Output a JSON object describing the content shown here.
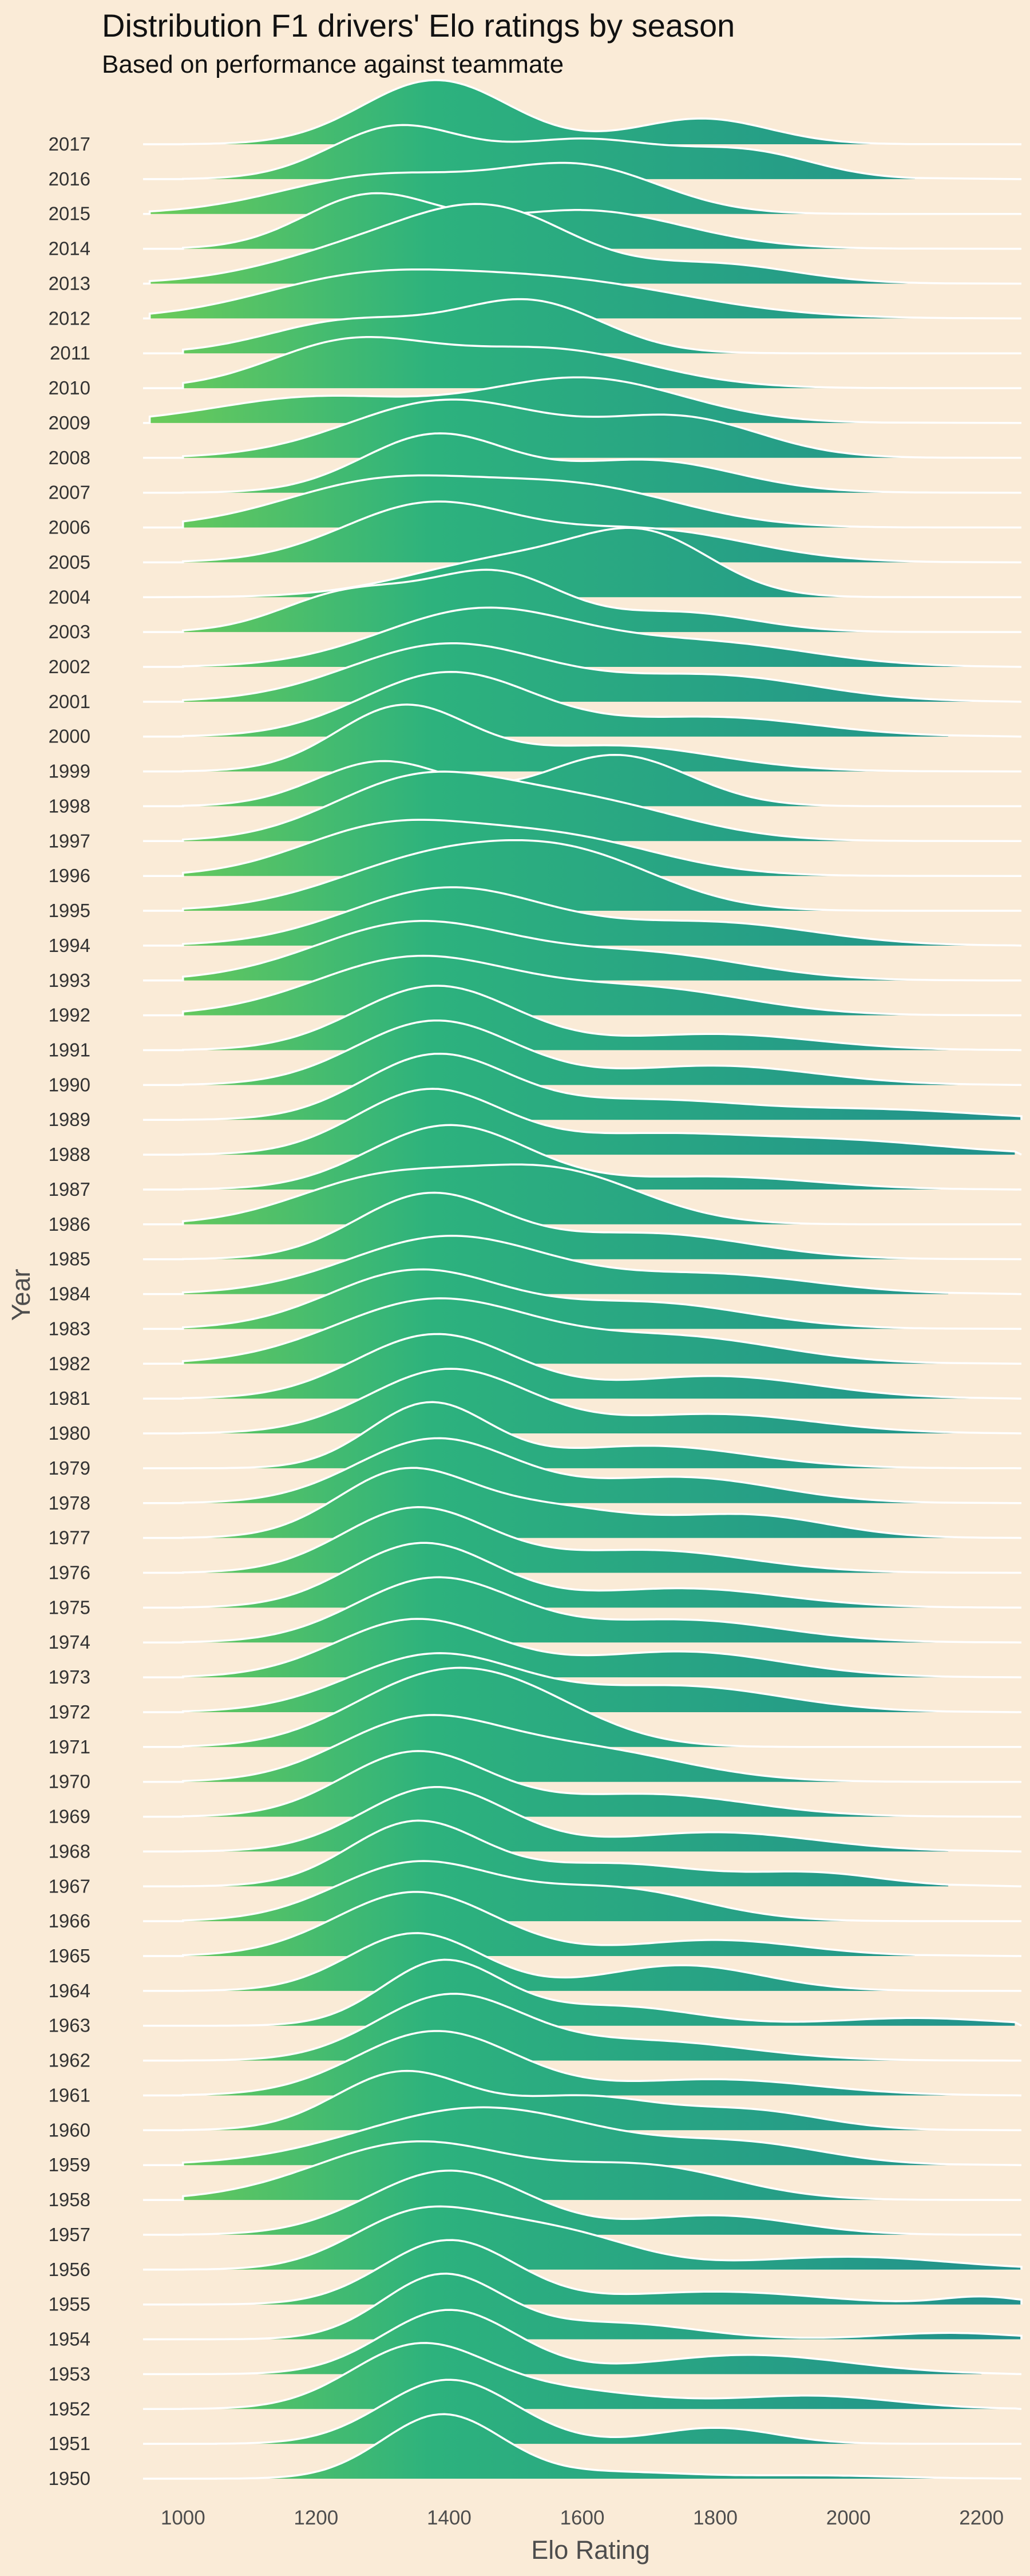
{
  "chart_data": {
    "type": "area",
    "subtype": "ridgeline",
    "title": "Distribution F1 drivers' Elo ratings by season",
    "subtitle": "Based on performance against teammate",
    "xlabel": "Elo Rating",
    "ylabel": "Year",
    "xlim": [
      940,
      2260
    ],
    "xticks": [
      1000,
      1200,
      1400,
      1600,
      1800,
      2000,
      2200
    ],
    "grid": false,
    "legend": "none",
    "colors": {
      "low": "#7ad151",
      "mid": "#2db27d",
      "high": "#21908d",
      "outline": "#ffffff",
      "background": "#faebd7"
    },
    "series": [
      {
        "name": "1950",
        "min": 1050,
        "max": 2250,
        "peaks": [
          [
            1390,
            1.0,
            90
          ],
          [
            1650,
            0.1,
            110
          ],
          [
            1950,
            0.05,
            120
          ]
        ]
      },
      {
        "name": "1951",
        "min": 1050,
        "max": 2100,
        "peaks": [
          [
            1400,
            1.0,
            100
          ],
          [
            1800,
            0.25,
            90
          ]
        ]
      },
      {
        "name": "1952",
        "min": 1000,
        "max": 2250,
        "peaks": [
          [
            1350,
            0.9,
            100
          ],
          [
            1550,
            0.3,
            150
          ],
          [
            1950,
            0.2,
            120
          ]
        ]
      },
      {
        "name": "1953",
        "min": 1000,
        "max": 2200,
        "peaks": [
          [
            1400,
            1.0,
            100
          ],
          [
            1850,
            0.3,
            150
          ]
        ]
      },
      {
        "name": "1954",
        "min": 1000,
        "max": 2260,
        "peaks": [
          [
            1390,
            1.0,
            90
          ],
          [
            1650,
            0.25,
            120
          ],
          [
            2150,
            0.1,
            100
          ]
        ]
      },
      {
        "name": "1955",
        "min": 1000,
        "max": 2260,
        "peaks": [
          [
            1400,
            1.0,
            100
          ],
          [
            1800,
            0.2,
            150
          ],
          [
            2200,
            0.12,
            60
          ]
        ]
      },
      {
        "name": "1956",
        "min": 1000,
        "max": 2260,
        "peaks": [
          [
            1350,
            0.8,
            100
          ],
          [
            1550,
            0.6,
            120
          ],
          [
            2000,
            0.2,
            150
          ]
        ]
      },
      {
        "name": "1957",
        "min": 1000,
        "max": 2200,
        "peaks": [
          [
            1400,
            1.0,
            120
          ],
          [
            1800,
            0.3,
            120
          ]
        ]
      },
      {
        "name": "1958",
        "min": 1000,
        "max": 2200,
        "peaks": [
          [
            1350,
            0.9,
            150
          ],
          [
            1700,
            0.5,
            130
          ]
        ]
      },
      {
        "name": "1959",
        "min": 1000,
        "max": 2150,
        "peaks": [
          [
            1450,
            0.9,
            180
          ],
          [
            1850,
            0.3,
            120
          ]
        ]
      },
      {
        "name": "1960",
        "min": 1000,
        "max": 2150,
        "peaks": [
          [
            1330,
            0.9,
            100
          ],
          [
            1600,
            0.5,
            110
          ],
          [
            1850,
            0.3,
            110
          ]
        ]
      },
      {
        "name": "1961",
        "min": 1000,
        "max": 2200,
        "peaks": [
          [
            1380,
            1.0,
            120
          ],
          [
            1800,
            0.25,
            150
          ]
        ]
      },
      {
        "name": "1962",
        "min": 1000,
        "max": 2250,
        "peaks": [
          [
            1400,
            1.0,
            110
          ],
          [
            1700,
            0.3,
            150
          ]
        ]
      },
      {
        "name": "1963",
        "min": 1050,
        "max": 2250,
        "peaks": [
          [
            1390,
            1.0,
            90
          ],
          [
            1650,
            0.3,
            120
          ],
          [
            2100,
            0.12,
            120
          ]
        ]
      },
      {
        "name": "1964",
        "min": 1000,
        "max": 2150,
        "peaks": [
          [
            1350,
            0.9,
            100
          ],
          [
            1750,
            0.4,
            120
          ]
        ]
      },
      {
        "name": "1965",
        "min": 1000,
        "max": 2100,
        "peaks": [
          [
            1350,
            1.0,
            120
          ],
          [
            1800,
            0.25,
            130
          ]
        ]
      },
      {
        "name": "1966",
        "min": 1000,
        "max": 2100,
        "peaks": [
          [
            1350,
            0.9,
            120
          ],
          [
            1650,
            0.5,
            130
          ]
        ]
      },
      {
        "name": "1967",
        "min": 1000,
        "max": 2150,
        "peaks": [
          [
            1350,
            1.0,
            100
          ],
          [
            1650,
            0.35,
            130
          ],
          [
            1950,
            0.2,
            100
          ]
        ]
      },
      {
        "name": "1968",
        "min": 1000,
        "max": 2150,
        "peaks": [
          [
            1380,
            1.0,
            110
          ],
          [
            1800,
            0.3,
            150
          ]
        ]
      },
      {
        "name": "1969",
        "min": 1000,
        "max": 2150,
        "peaks": [
          [
            1350,
            1.0,
            110
          ],
          [
            1700,
            0.35,
            150
          ]
        ]
      },
      {
        "name": "1970",
        "min": 1000,
        "max": 2150,
        "peaks": [
          [
            1350,
            0.9,
            120
          ],
          [
            1600,
            0.5,
            150
          ]
        ]
      },
      {
        "name": "1971",
        "min": 1000,
        "max": 2100,
        "peaks": [
          [
            1350,
            0.8,
            120
          ],
          [
            1500,
            0.7,
            120
          ]
        ]
      },
      {
        "name": "1972",
        "min": 1000,
        "max": 2150,
        "peaks": [
          [
            1380,
            0.9,
            130
          ],
          [
            1750,
            0.4,
            150
          ]
        ]
      },
      {
        "name": "1973",
        "min": 1000,
        "max": 2200,
        "peaks": [
          [
            1350,
            0.9,
            120
          ],
          [
            1750,
            0.4,
            150
          ]
        ]
      },
      {
        "name": "1974",
        "min": 1000,
        "max": 2200,
        "peaks": [
          [
            1380,
            1.0,
            120
          ],
          [
            1750,
            0.35,
            150
          ]
        ]
      },
      {
        "name": "1975",
        "min": 1000,
        "max": 2250,
        "peaks": [
          [
            1360,
            1.0,
            110
          ],
          [
            1750,
            0.3,
            150
          ]
        ]
      },
      {
        "name": "1976",
        "min": 1000,
        "max": 2150,
        "peaks": [
          [
            1350,
            1.0,
            110
          ],
          [
            1700,
            0.35,
            150
          ]
        ]
      },
      {
        "name": "1977",
        "min": 1000,
        "max": 2200,
        "peaks": [
          [
            1330,
            1.0,
            100
          ],
          [
            1550,
            0.45,
            120
          ],
          [
            1850,
            0.35,
            120
          ]
        ]
      },
      {
        "name": "1978",
        "min": 1000,
        "max": 2150,
        "peaks": [
          [
            1380,
            1.0,
            120
          ],
          [
            1750,
            0.4,
            140
          ]
        ]
      },
      {
        "name": "1979",
        "min": 1000,
        "max": 2250,
        "peaks": [
          [
            1370,
            1.0,
            90
          ],
          [
            1700,
            0.35,
            150
          ]
        ]
      },
      {
        "name": "1980",
        "min": 1000,
        "max": 2200,
        "peaks": [
          [
            1400,
            1.0,
            120
          ],
          [
            1800,
            0.3,
            150
          ]
        ]
      },
      {
        "name": "1981",
        "min": 1000,
        "max": 2200,
        "peaks": [
          [
            1380,
            1.0,
            120
          ],
          [
            1800,
            0.35,
            150
          ]
        ]
      },
      {
        "name": "1982",
        "min": 1000,
        "max": 2150,
        "peaks": [
          [
            1380,
            1.0,
            150
          ],
          [
            1750,
            0.4,
            150
          ]
        ]
      },
      {
        "name": "1983",
        "min": 1000,
        "max": 2150,
        "peaks": [
          [
            1350,
            0.9,
            130
          ],
          [
            1700,
            0.4,
            150
          ]
        ]
      },
      {
        "name": "1984",
        "min": 1000,
        "max": 2150,
        "peaks": [
          [
            1400,
            0.9,
            150
          ],
          [
            1800,
            0.3,
            150
          ]
        ]
      },
      {
        "name": "1985",
        "min": 1000,
        "max": 2150,
        "peaks": [
          [
            1370,
            1.0,
            110
          ],
          [
            1700,
            0.4,
            150
          ]
        ]
      },
      {
        "name": "1986",
        "min": 1000,
        "max": 2150,
        "peaks": [
          [
            1300,
            0.7,
            130
          ],
          [
            1560,
            0.8,
            130
          ]
        ]
      },
      {
        "name": "1987",
        "min": 1000,
        "max": 2200,
        "peaks": [
          [
            1400,
            1.0,
            120
          ],
          [
            1800,
            0.2,
            150
          ]
        ]
      },
      {
        "name": "1988",
        "min": 1000,
        "max": 2250,
        "peaks": [
          [
            1370,
            1.0,
            110
          ],
          [
            1700,
            0.3,
            150
          ],
          [
            2000,
            0.2,
            150
          ]
        ]
      },
      {
        "name": "1989",
        "min": 1000,
        "max": 2260,
        "peaks": [
          [
            1380,
            1.0,
            110
          ],
          [
            1700,
            0.3,
            150
          ],
          [
            2050,
            0.15,
            150
          ]
        ]
      },
      {
        "name": "1990",
        "min": 1000,
        "max": 2200,
        "peaks": [
          [
            1380,
            1.0,
            120
          ],
          [
            1800,
            0.3,
            150
          ]
        ]
      },
      {
        "name": "1991",
        "min": 1000,
        "max": 2250,
        "peaks": [
          [
            1380,
            1.0,
            120
          ],
          [
            1800,
            0.25,
            150
          ]
        ]
      },
      {
        "name": "1992",
        "min": 1000,
        "max": 2150,
        "peaks": [
          [
            1350,
            0.9,
            150
          ],
          [
            1700,
            0.4,
            150
          ]
        ]
      },
      {
        "name": "1993",
        "min": 1000,
        "max": 2250,
        "peaks": [
          [
            1350,
            0.9,
            150
          ],
          [
            1700,
            0.4,
            150
          ]
        ]
      },
      {
        "name": "1994",
        "min": 1000,
        "max": 2250,
        "peaks": [
          [
            1400,
            0.9,
            150
          ],
          [
            1800,
            0.35,
            150
          ]
        ]
      },
      {
        "name": "1995",
        "min": 1000,
        "max": 2150,
        "peaks": [
          [
            1380,
            0.8,
            150
          ],
          [
            1600,
            0.7,
            130
          ]
        ]
      },
      {
        "name": "1996",
        "min": 1000,
        "max": 2150,
        "peaks": [
          [
            1300,
            0.7,
            130
          ],
          [
            1560,
            0.6,
            150
          ]
        ]
      },
      {
        "name": "1997",
        "min": 1000,
        "max": 2100,
        "peaks": [
          [
            1350,
            0.9,
            130
          ],
          [
            1600,
            0.6,
            150
          ]
        ]
      },
      {
        "name": "1998",
        "min": 1000,
        "max": 2150,
        "peaks": [
          [
            1300,
            0.7,
            100
          ],
          [
            1650,
            0.8,
            110
          ]
        ]
      },
      {
        "name": "1999",
        "min": 1000,
        "max": 2150,
        "peaks": [
          [
            1330,
            1.0,
            100
          ],
          [
            1650,
            0.4,
            150
          ]
        ]
      },
      {
        "name": "2000",
        "min": 1000,
        "max": 2150,
        "peaks": [
          [
            1400,
            1.0,
            130
          ],
          [
            1800,
            0.3,
            150
          ]
        ]
      },
      {
        "name": "2001",
        "min": 1000,
        "max": 2200,
        "peaks": [
          [
            1400,
            0.9,
            150
          ],
          [
            1800,
            0.4,
            150
          ]
        ]
      },
      {
        "name": "2002",
        "min": 1000,
        "max": 2200,
        "peaks": [
          [
            1450,
            0.9,
            150
          ],
          [
            1800,
            0.35,
            150
          ]
        ]
      },
      {
        "name": "2003",
        "min": 1000,
        "max": 2100,
        "peaks": [
          [
            1250,
            0.6,
            100
          ],
          [
            1470,
            0.9,
            100
          ],
          [
            1750,
            0.3,
            110
          ]
        ]
      },
      {
        "name": "2004",
        "min": 950,
        "max": 2050,
        "peaks": [
          [
            1500,
            0.6,
            150
          ],
          [
            1700,
            0.8,
            100
          ]
        ]
      },
      {
        "name": "2005",
        "min": 1000,
        "max": 2150,
        "peaks": [
          [
            1370,
            0.9,
            130
          ],
          [
            1700,
            0.5,
            150
          ]
        ]
      },
      {
        "name": "2006",
        "min": 1000,
        "max": 2150,
        "peaks": [
          [
            1300,
            0.7,
            150
          ],
          [
            1600,
            0.6,
            150
          ]
        ]
      },
      {
        "name": "2007",
        "min": 1000,
        "max": 2150,
        "peaks": [
          [
            1380,
            0.9,
            110
          ],
          [
            1700,
            0.5,
            130
          ]
        ]
      },
      {
        "name": "2008",
        "min": 1000,
        "max": 2150,
        "peaks": [
          [
            1400,
            0.9,
            150
          ],
          [
            1750,
            0.6,
            120
          ]
        ]
      },
      {
        "name": "2009",
        "min": 950,
        "max": 2050,
        "peaks": [
          [
            1200,
            0.4,
            150
          ],
          [
            1600,
            0.7,
            150
          ]
        ]
      },
      {
        "name": "2010",
        "min": 1000,
        "max": 2100,
        "peaks": [
          [
            1250,
            0.7,
            120
          ],
          [
            1550,
            0.6,
            150
          ]
        ]
      },
      {
        "name": "2011",
        "min": 1000,
        "max": 2050,
        "peaks": [
          [
            1250,
            0.5,
            120
          ],
          [
            1520,
            0.8,
            110
          ]
        ]
      },
      {
        "name": "2012",
        "min": 950,
        "max": 2150,
        "peaks": [
          [
            1250,
            0.5,
            150
          ],
          [
            1550,
            0.6,
            200
          ]
        ]
      },
      {
        "name": "2013",
        "min": 950,
        "max": 2150,
        "peaks": [
          [
            1300,
            0.6,
            150
          ],
          [
            1480,
            0.9,
            120
          ],
          [
            1800,
            0.3,
            120
          ]
        ]
      },
      {
        "name": "2014",
        "min": 1000,
        "max": 2100,
        "peaks": [
          [
            1280,
            0.8,
            100
          ],
          [
            1600,
            0.6,
            150
          ]
        ]
      },
      {
        "name": "2015",
        "min": 950,
        "max": 2100,
        "peaks": [
          [
            1300,
            0.6,
            150
          ],
          [
            1600,
            0.7,
            120
          ]
        ]
      },
      {
        "name": "2016",
        "min": 1000,
        "max": 2100,
        "peaks": [
          [
            1320,
            0.8,
            100
          ],
          [
            1600,
            0.6,
            120
          ],
          [
            1850,
            0.4,
            100
          ]
        ]
      },
      {
        "name": "2017",
        "min": 1000,
        "max": 2100,
        "peaks": [
          [
            1380,
            1.0,
            110
          ],
          [
            1780,
            0.4,
            100
          ]
        ]
      }
    ]
  }
}
